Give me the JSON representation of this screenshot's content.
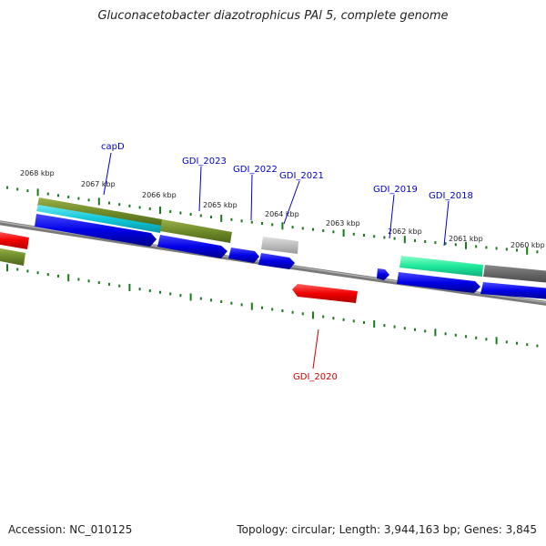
{
  "title": "Gluconacetobacter diazotrophicus PAl 5, complete genome",
  "footer": {
    "accession": "Accession: NC_010125",
    "summary": "Topology: circular; Length: 3,944,163 bp; Genes: 3,845"
  },
  "colors": {
    "label_blue": "#0000c8",
    "label_red": "#d00000",
    "tick_green": "#1a7a1a",
    "backbone": "#808080"
  },
  "ticks": [
    {
      "label": "2068 kbp"
    },
    {
      "label": "2067 kbp"
    },
    {
      "label": "2066 kbp"
    },
    {
      "label": "2065 kbp"
    },
    {
      "label": "2064 kbp"
    },
    {
      "label": "2063 kbp"
    },
    {
      "label": "2062 kbp"
    },
    {
      "label": "2061 kbp"
    },
    {
      "label": "2060 kbp"
    }
  ],
  "gene_labels": [
    {
      "name": "capD",
      "color": "#0000c8"
    },
    {
      "name": "GDI_2023",
      "color": "#0000c8"
    },
    {
      "name": "GDI_2022",
      "color": "#0000c8"
    },
    {
      "name": "GDI_2021",
      "color": "#0000c8"
    },
    {
      "name": "GDI_2019",
      "color": "#0000c8"
    },
    {
      "name": "GDI_2018",
      "color": "#0000c8"
    },
    {
      "name": "GDI_2020",
      "color": "#d00000"
    }
  ]
}
